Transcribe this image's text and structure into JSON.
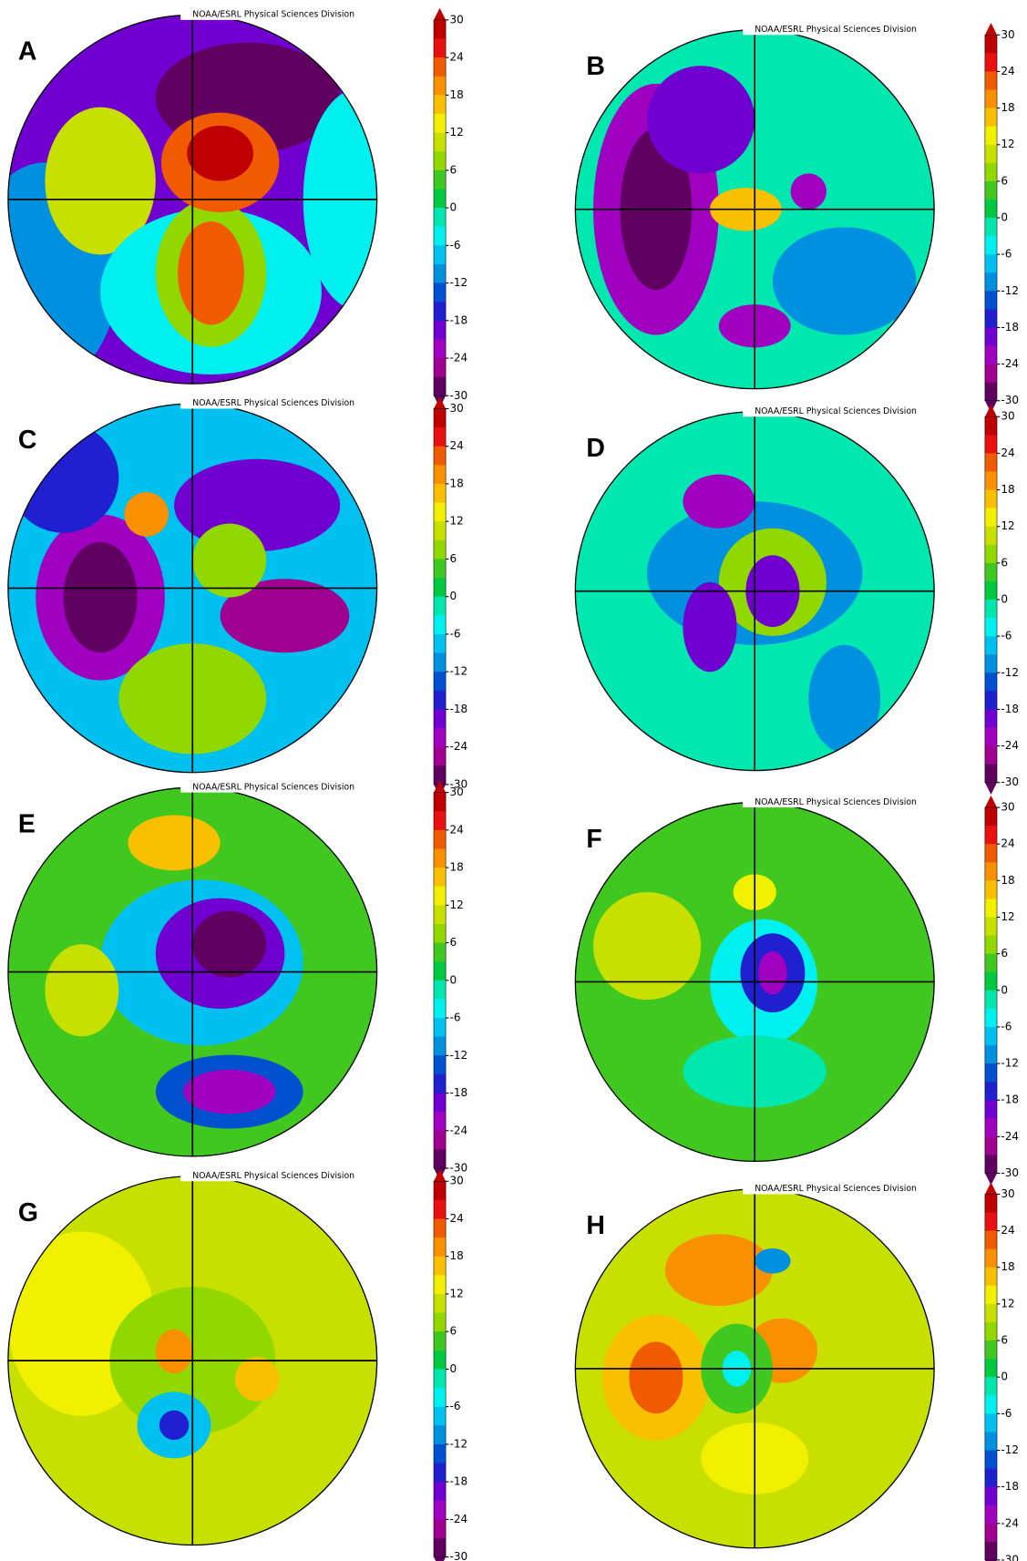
{
  "panels": [
    {
      "letter": "A",
      "credit": "NOAA/ESRL Physical Sciences Division"
    },
    {
      "letter": "B",
      "credit": "NOAA/ESRL Physical Sciences Division"
    },
    {
      "letter": "C",
      "credit": "NOAA/ESRL Physical Sciences Division"
    },
    {
      "letter": "D",
      "credit": "NOAA/ESRL Physical Sciences Division"
    },
    {
      "letter": "E",
      "credit": "NOAA/ESRL Physical Sciences Division"
    },
    {
      "letter": "F",
      "credit": "NOAA/ESRL Physical Sciences Division"
    },
    {
      "letter": "G",
      "credit": "NOAA/ESRL Physical Sciences Division"
    },
    {
      "letter": "H",
      "credit": "NOAA/ESRL Physical Sciences Division"
    }
  ],
  "colorbar": {
    "ticks": [
      "30",
      "24",
      "18",
      "12",
      "6",
      "0",
      "-6",
      "-12",
      "-18",
      "-24",
      "-30"
    ]
  }
}
